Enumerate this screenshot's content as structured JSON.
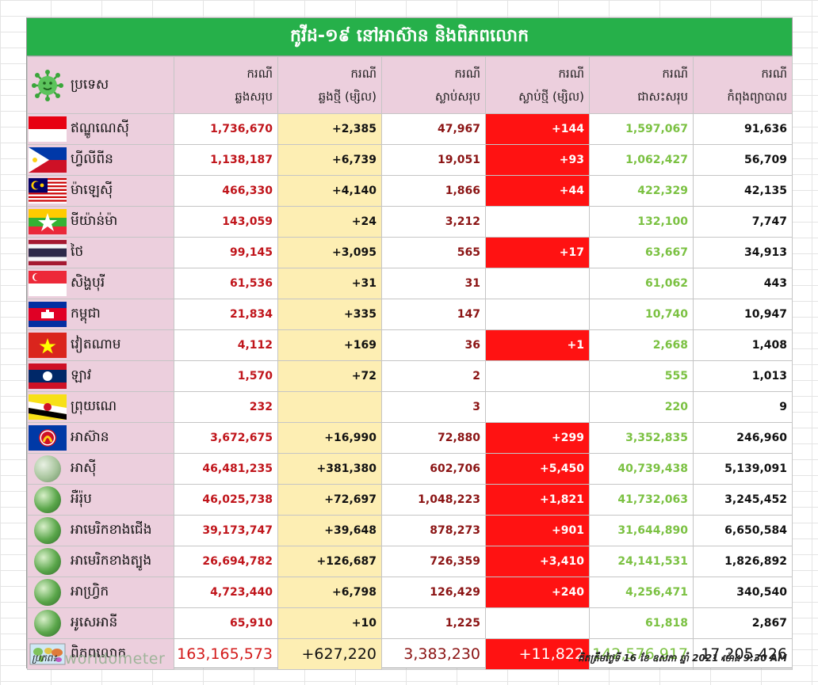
{
  "title": "កូវីដ-១៩ នៅអាស៊ាន និងពិភពលោក",
  "headers": {
    "country": "ប្រទេស",
    "total_cases": [
      "ករណី",
      "ឆ្លងសរុប"
    ],
    "new_cases": [
      "ករណី",
      "ឆ្លងថ្មី (ម្សិល)"
    ],
    "total_deaths": [
      "ករណី",
      "ស្លាប់សរុប"
    ],
    "new_deaths": [
      "ករណី",
      "ស្លាប់ថ្មី (ម្សិល)"
    ],
    "recovered": [
      "ករណី",
      "ជាសះសរុប"
    ],
    "active": [
      "ករណី",
      "កំពុងព្យាបាល"
    ]
  },
  "rows": [
    {
      "name": "ឥណ្ឌូណេស៊ី",
      "flag": "flag-indonesia",
      "total": "1,736,670",
      "new": "+2,385",
      "deaths": "47,967",
      "new_deaths": "+144",
      "recovered": "1,597,067",
      "active": "91,636"
    },
    {
      "name": "ហ្វីលីពីន",
      "flag": "flag-philippines",
      "total": "1,138,187",
      "new": "+6,739",
      "deaths": "19,051",
      "new_deaths": "+93",
      "recovered": "1,062,427",
      "active": "56,709"
    },
    {
      "name": "ម៉ាឡេស៊ី",
      "flag": "flag-malaysia",
      "total": "466,330",
      "new": "+4,140",
      "deaths": "1,866",
      "new_deaths": "+44",
      "recovered": "422,329",
      "active": "42,135"
    },
    {
      "name": "មីយ៉ាន់ម៉ា",
      "flag": "flag-myanmar",
      "total": "143,059",
      "new": "+24",
      "deaths": "3,212",
      "new_deaths": "",
      "recovered": "132,100",
      "active": "7,747"
    },
    {
      "name": "ថៃ",
      "flag": "flag-thailand",
      "total": "99,145",
      "new": "+3,095",
      "deaths": "565",
      "new_deaths": "+17",
      "recovered": "63,667",
      "active": "34,913"
    },
    {
      "name": "សិង្ហបុរី",
      "flag": "flag-singapore",
      "total": "61,536",
      "new": "+31",
      "deaths": "31",
      "new_deaths": "",
      "recovered": "61,062",
      "active": "443"
    },
    {
      "name": "កម្ពុជា",
      "flag": "flag-cambodia",
      "total": "21,834",
      "new": "+335",
      "deaths": "147",
      "new_deaths": "",
      "recovered": "10,740",
      "active": "10,947"
    },
    {
      "name": "វៀតណាម",
      "flag": "flag-vietnam",
      "total": "4,112",
      "new": "+169",
      "deaths": "36",
      "new_deaths": "+1",
      "recovered": "2,668",
      "active": "1,408"
    },
    {
      "name": "ឡាវ",
      "flag": "flag-laos",
      "total": "1,570",
      "new": "+72",
      "deaths": "2",
      "new_deaths": "",
      "recovered": "555",
      "active": "1,013"
    },
    {
      "name": "ព្រុយណេ",
      "flag": "flag-brunei",
      "total": "232",
      "new": "",
      "deaths": "3",
      "new_deaths": "",
      "recovered": "220",
      "active": "9"
    },
    {
      "name": "អាស៊ាន",
      "flag": "flag-asean",
      "total": "3,672,675",
      "new": "+16,990",
      "deaths": "72,880",
      "new_deaths": "+299",
      "recovered": "3,352,835",
      "active": "246,960"
    },
    {
      "name": "អាស៊ី",
      "flag": "globe-asia-icon",
      "total": "46,481,235",
      "new": "+381,380",
      "deaths": "602,706",
      "new_deaths": "+5,450",
      "recovered": "40,739,438",
      "active": "5,139,091"
    },
    {
      "name": "អឺរ៉ុប",
      "flag": "globe-europe-icon",
      "total": "46,025,738",
      "new": "+72,697",
      "deaths": "1,048,223",
      "new_deaths": "+1,821",
      "recovered": "41,732,063",
      "active": "3,245,452"
    },
    {
      "name": "អាមេរិកខាងជើង",
      "flag": "globe-north-america-icon",
      "total": "39,173,747",
      "new": "+39,648",
      "deaths": "878,273",
      "new_deaths": "+901",
      "recovered": "31,644,890",
      "active": "6,650,584"
    },
    {
      "name": "អាមេរិកខាងត្បូង",
      "flag": "globe-south-america-icon",
      "total": "26,694,782",
      "new": "+126,687",
      "deaths": "726,359",
      "new_deaths": "+3,410",
      "recovered": "24,141,531",
      "active": "1,826,892"
    },
    {
      "name": "អាហ្វ្រិក",
      "flag": "globe-africa-icon",
      "total": "4,723,440",
      "new": "+6,798",
      "deaths": "126,429",
      "new_deaths": "+240",
      "recovered": "4,256,471",
      "active": "340,540"
    },
    {
      "name": "អូសេអានី",
      "flag": "globe-oceania-icon",
      "total": "65,910",
      "new": "+10",
      "deaths": "1,225",
      "new_deaths": "",
      "recovered": "61,818",
      "active": "2,867"
    }
  ],
  "world": {
    "name": "ពិភពលោក",
    "flag": "world-map-icon",
    "total": "163,165,573",
    "new": "+627,220",
    "deaths": "3,383,230",
    "new_deaths": "+11,822",
    "recovered": "142,576,917",
    "active": "17,205,426"
  },
  "footer": {
    "source_label": "ប្រភព៖",
    "source_brand": "worldometer",
    "updated": "គិតត្រឹមថ្ងៃទី 16 ខែ ឧសភា ឆ្នាំ 2021 ម៉ោង 9:30 AM"
  },
  "colors": {
    "title_bg": "#26b04a",
    "header_bg": "#eccfdd",
    "new_cases_bg": "#fdeeb3",
    "new_deaths_bg": "#ff1212",
    "total_cases_text": "#c0151b",
    "deaths_text": "#8b1414",
    "recovered_text": "#7bc142"
  }
}
